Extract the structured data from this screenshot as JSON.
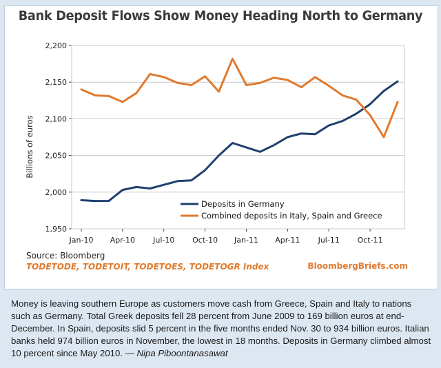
{
  "colors": {
    "germany": "#1f3f6f",
    "southern": "#e07a2e",
    "grid": "#c8c8c8",
    "axis": "#444444"
  },
  "chart_data": {
    "type": "line",
    "title": "Bank Deposit Flows Show Money Heading North to Germany",
    "ylabel": "Billions of euros",
    "xlabel": "",
    "ylim": [
      1950,
      2200
    ],
    "yticks": [
      "1,950",
      "2,000",
      "2,050",
      "2,100",
      "2,150",
      "2,200"
    ],
    "ytick_values": [
      1950,
      2000,
      2050,
      2100,
      2150,
      2200
    ],
    "xticks": [
      "Jan-10",
      "Apr-10",
      "Jul-10",
      "Oct-10",
      "Jan-11",
      "Apr-11",
      "Jul-11",
      "Oct-11"
    ],
    "xtick_index": [
      0,
      3,
      6,
      9,
      12,
      15,
      18,
      21
    ],
    "x_count": 24,
    "grid": "horizontal",
    "legend_position": "bottom-center",
    "series": [
      {
        "name": "Deposits in Germany",
        "color_key": "germany",
        "values": [
          1989,
          1988,
          1988,
          2003,
          2007,
          2005,
          2010,
          2015,
          2016,
          2030,
          2050,
          2067,
          2061,
          2055,
          2064,
          2075,
          2080,
          2079,
          2091,
          2097,
          2107,
          2120,
          2138,
          2151
        ]
      },
      {
        "name": "Combined deposits in Italy, Spain and Greece",
        "color_key": "southern",
        "values": [
          2140,
          2132,
          2131,
          2123,
          2135,
          2161,
          2157,
          2149,
          2146,
          2158,
          2137,
          2182,
          2146,
          2149,
          2156,
          2153,
          2143,
          2157,
          2145,
          2132,
          2126,
          2105,
          2075,
          2123
        ]
      }
    ]
  },
  "source": "Source: Bloomberg",
  "tickers": "TODETODE, TODETOIT, TODETOES, TODETOGR Index",
  "brand": "BloombergBriefs.com",
  "caption": {
    "text": "Money is leaving southern Europe as customers move cash from Greece, Spain and Italy to nations such as Germany. Total Greek deposits fell 28 percent from June 2009 to 169 billion euros at end-December. In Spain, deposits slid 5 percent in the five months ended Nov. 30 to 934 billion euros. Italian banks held 974 billion euros in November, the lowest in 18 months. Deposits in Germany climbed almost 10 percent since May 2010. — ",
    "byline": "Nipa Piboontanasawat"
  }
}
